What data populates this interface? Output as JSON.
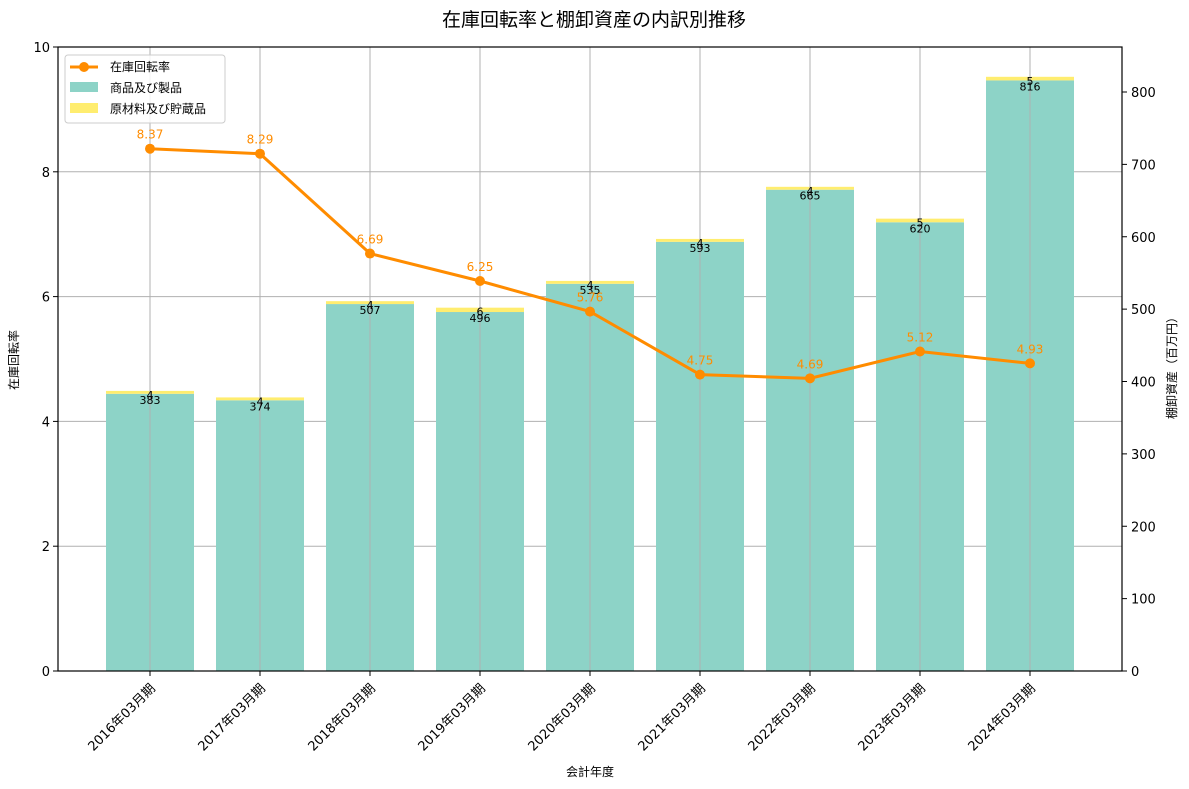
{
  "chart_data": {
    "type": "bar+line",
    "title": "在庫回転率と棚卸資産の内訳別推移",
    "xlabel": "会計年度",
    "ylabel_left": "在庫回転率",
    "ylabel_right": "棚卸資産（百万円）",
    "ylim_left": [
      0,
      10
    ],
    "ylim_right": [
      0,
      860
    ],
    "yticks_left": [
      0,
      2,
      4,
      6,
      8,
      10
    ],
    "yticks_right": [
      0,
      100,
      200,
      300,
      400,
      500,
      600,
      700,
      800
    ],
    "grid": true,
    "legend_position": "upper left",
    "categories": [
      "2016年03月期",
      "2017年03月期",
      "2018年03月期",
      "2019年03月期",
      "2020年03月期",
      "2021年03月期",
      "2022年03月期",
      "2023年03月期",
      "2024年03月期"
    ],
    "series": [
      {
        "name": "在庫回転率",
        "type": "line",
        "axis": "left",
        "color": "#ff8c00",
        "values": [
          8.37,
          8.29,
          6.69,
          6.25,
          5.76,
          4.75,
          4.69,
          5.12,
          4.93
        ]
      },
      {
        "name": "商品及び製品",
        "type": "stacked-bar",
        "axis": "right",
        "color": "#8dd3c7",
        "values": [
          383,
          374,
          507,
          496,
          535,
          593,
          665,
          620,
          816
        ]
      },
      {
        "name": "原材料及び貯蔵品",
        "type": "stacked-bar",
        "axis": "right",
        "color": "#ffed6f",
        "values": [
          4,
          4,
          4,
          6,
          4,
          4,
          4,
          5,
          5
        ]
      }
    ]
  }
}
